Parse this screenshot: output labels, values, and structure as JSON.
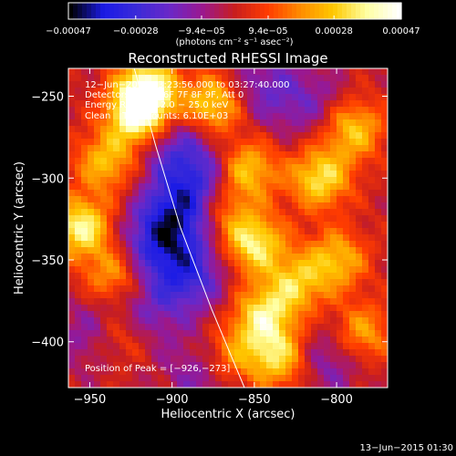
{
  "chart_data": {
    "type": "heatmap",
    "title": "Reconstructed RHESSI Image",
    "xlabel": "Heliocentric X (arcsec)",
    "ylabel": "Heliocentric Y (arcsec)",
    "xlim": [
      -963,
      -769
    ],
    "ylim": [
      -428,
      -233
    ],
    "x_ticks": [
      -950,
      -900,
      -850,
      -800
    ],
    "y_ticks": [
      -250,
      -300,
      -350,
      -400
    ],
    "x_tick_labels": [
      "−950",
      "−900",
      "−850",
      "−800"
    ],
    "y_tick_labels": [
      "−250",
      "−300",
      "−350",
      "−400"
    ],
    "colorbar": {
      "range": [
        -0.00047,
        0.00047
      ],
      "tick_values": [
        -0.00047,
        -0.00028,
        -9.4e-05,
        9.4e-05,
        0.00028,
        0.00047
      ],
      "tick_labels": [
        "−0.00047",
        "−0.00028",
        "−9.4e−05",
        "9.4e−05",
        "0.00028",
        "0.00047"
      ],
      "units_label": "(photons cm⁻² s⁻¹ asec⁻²)",
      "colormap": [
        "#000000",
        "#1a1ae6",
        "#3a2ad8",
        "#6a28c8",
        "#9a1890",
        "#c81e1e",
        "#ff3c00",
        "#ff8c00",
        "#ffc800",
        "#ffffa0",
        "#ffffff"
      ]
    },
    "annotations": [
      "12−Jun−2015 03:23:56.000 to 03:27:40.000",
      "Detectors: 3F 5F 6F 7F 8F 9F, Att 0",
      "Energy Range: 12.0 − 25.0 keV",
      "Clean    Total counts: 6.10E+03"
    ],
    "peak_label": "Position of Peak = [−926,−273]",
    "limb_curve": [
      [
        -923,
        -233
      ],
      [
        -910,
        -280
      ],
      [
        -895,
        -330
      ],
      [
        -876,
        -380
      ],
      [
        -856,
        -428
      ]
    ],
    "timestamp": "13−Jun−2015 01:30",
    "hot_spots": [
      {
        "x": -920,
        "y": -262,
        "intensity": 1.0
      },
      {
        "x": -915,
        "y": -245,
        "intensity": 0.9
      },
      {
        "x": -955,
        "y": -330,
        "intensity": 0.85
      },
      {
        "x": -940,
        "y": -290,
        "intensity": 0.6
      },
      {
        "x": -935,
        "y": -360,
        "intensity": 0.55
      },
      {
        "x": -930,
        "y": -395,
        "intensity": 0.5
      },
      {
        "x": -875,
        "y": -255,
        "intensity": 0.75
      },
      {
        "x": -855,
        "y": -295,
        "intensity": 0.7
      },
      {
        "x": -850,
        "y": -340,
        "intensity": 0.8
      },
      {
        "x": -845,
        "y": -385,
        "intensity": 0.75
      },
      {
        "x": -835,
        "y": -410,
        "intensity": 0.7
      },
      {
        "x": -810,
        "y": -300,
        "intensity": 0.75
      },
      {
        "x": -790,
        "y": -270,
        "intensity": 0.65
      },
      {
        "x": -800,
        "y": -350,
        "intensity": 0.6
      },
      {
        "x": -785,
        "y": -395,
        "intensity": 0.55
      },
      {
        "x": -825,
        "y": -365,
        "intensity": 0.6
      },
      {
        "x": -870,
        "y": -320,
        "intensity": 0.45
      },
      {
        "x": -865,
        "y": -410,
        "intensity": 0.5
      }
    ],
    "cold_spots": [
      {
        "x": -895,
        "y": -320,
        "intensity": 0.9
      },
      {
        "x": -900,
        "y": -280,
        "intensity": 0.6
      },
      {
        "x": -880,
        "y": -300,
        "intensity": 0.6
      },
      {
        "x": -910,
        "y": -340,
        "intensity": 0.8
      },
      {
        "x": -890,
        "y": -360,
        "intensity": 0.8
      },
      {
        "x": -920,
        "y": -385,
        "intensity": 0.6
      },
      {
        "x": -845,
        "y": -245,
        "intensity": 0.5
      },
      {
        "x": -815,
        "y": -255,
        "intensity": 0.4
      },
      {
        "x": -805,
        "y": -410,
        "intensity": 0.5
      },
      {
        "x": -950,
        "y": -395,
        "intensity": 0.4
      },
      {
        "x": -880,
        "y": -420,
        "intensity": 0.5
      }
    ]
  }
}
